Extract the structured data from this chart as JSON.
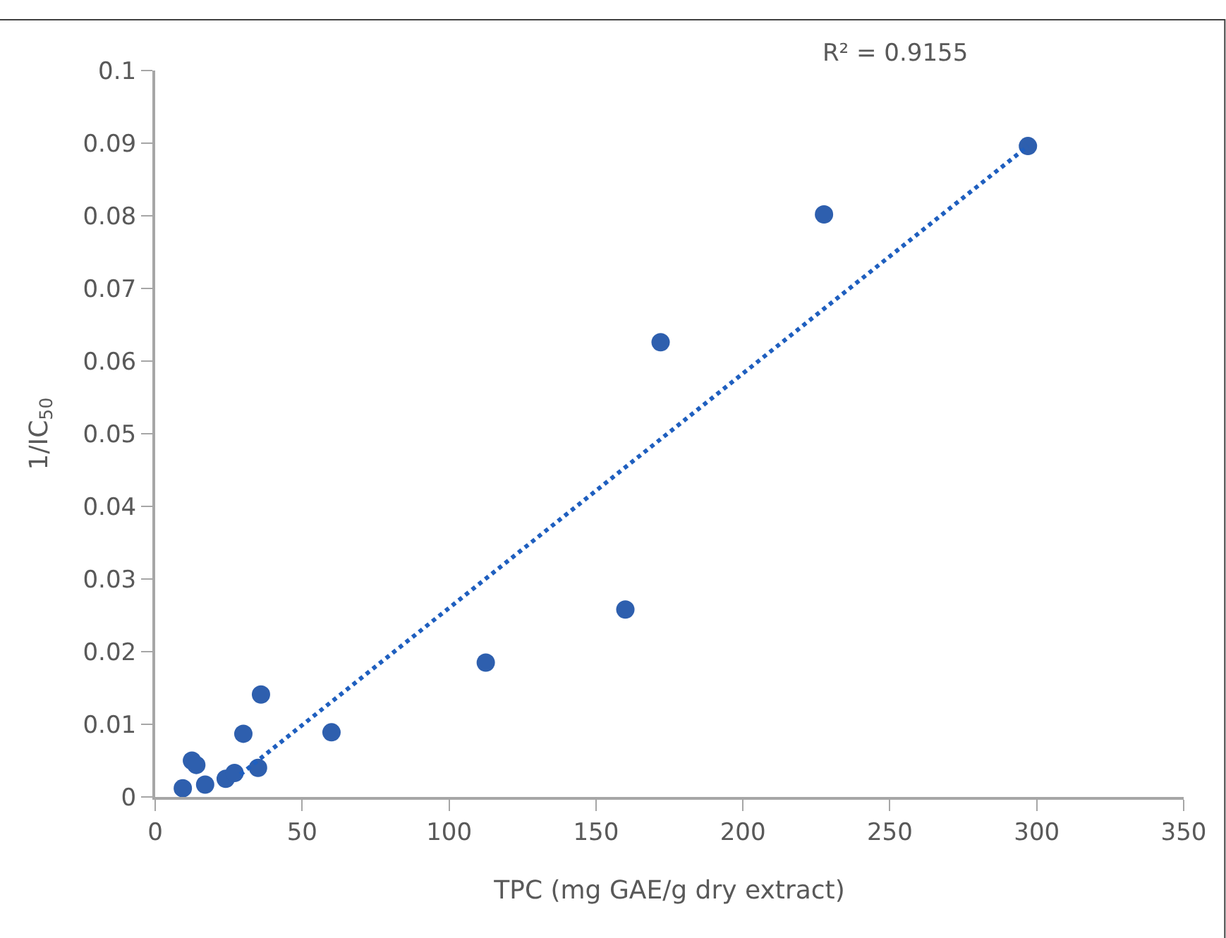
{
  "chart_data": {
    "type": "scatter",
    "xlabel": "TPC (mg GAE/g dry extract)",
    "ylabel": "1/IC$_{50}$",
    "annotations": [
      "R² = 0.9155"
    ],
    "series": [
      {
        "color": "#2e5fae",
        "marker": "circle",
        "x": [
          9.4,
          12.5,
          14,
          17,
          24,
          27,
          30,
          35,
          36,
          60,
          112.5,
          160,
          172,
          227.6,
          297
        ],
        "values": [
          0.0012,
          0.005,
          0.0044,
          0.0017,
          0.0025,
          0.0033,
          0.0087,
          0.004,
          0.0141,
          0.0089,
          0.0185,
          0.0258,
          0.0626,
          0.0802,
          0.0896
        ]
      },
      {
        "type": "line",
        "color": "#1f5fbf",
        "line_style": "dotted",
        "marker": "none",
        "x": [
          29,
          297
        ],
        "values": [
          0.0031,
          0.0896
        ]
      }
    ],
    "xlim": [
      0,
      350
    ],
    "xticks": [
      0,
      50,
      100,
      150,
      200,
      250,
      300,
      350
    ],
    "ylim": [
      0,
      0.1
    ],
    "yticks": [
      0,
      0.01,
      0.02,
      0.03,
      0.04,
      0.05,
      0.06,
      0.07,
      0.08,
      0.09,
      0.1
    ]
  }
}
